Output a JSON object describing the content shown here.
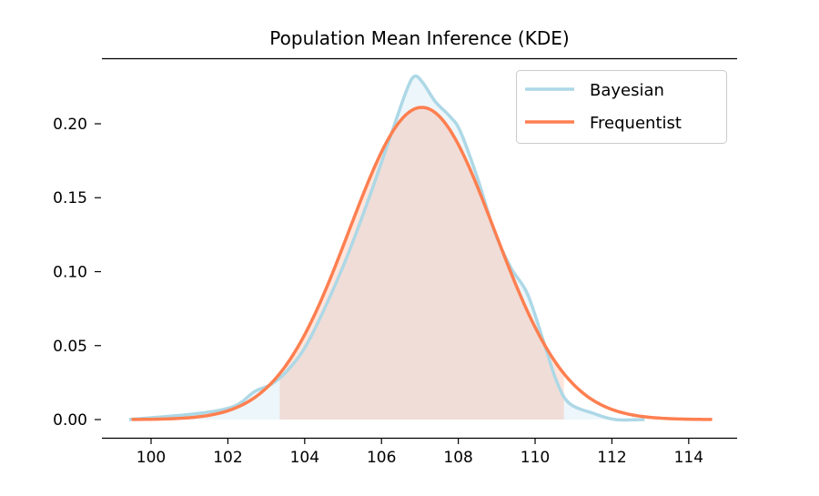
{
  "chart_data": {
    "type": "line",
    "title": "Population Mean Inference (KDE)",
    "xlabel": "",
    "ylabel": "",
    "xlim": [
      98.72,
      115.26
    ],
    "ylim": [
      -0.0123,
      0.2443
    ],
    "xticks": [
      100,
      102,
      104,
      106,
      108,
      110,
      112,
      114
    ],
    "xtick_labels": [
      "100",
      "102",
      "104",
      "106",
      "108",
      "110",
      "112",
      "114"
    ],
    "yticks": [
      0.0,
      0.05,
      0.1,
      0.15,
      0.2
    ],
    "ytick_labels": [
      "0.00",
      "0.05",
      "0.10",
      "0.15",
      "0.20"
    ],
    "grid": false,
    "legend_position": "top-right",
    "series": [
      {
        "name": "Bayesian",
        "color": "#add8e6",
        "fill": true,
        "x": [
          99.43,
          101.18,
          102.16,
          102.7,
          103.14,
          103.58,
          104.12,
          104.99,
          105.65,
          106.2,
          106.63,
          106.85,
          107.07,
          107.4,
          107.78,
          108.05,
          108.49,
          108.93,
          109.36,
          109.8,
          110.23,
          110.56,
          110.89,
          111.54,
          112.09,
          112.85
        ],
        "y": [
          0,
          0.004,
          0.009,
          0.019,
          0.024,
          0.034,
          0.054,
          0.103,
          0.148,
          0.189,
          0.221,
          0.232,
          0.228,
          0.215,
          0.205,
          0.195,
          0.164,
          0.128,
          0.103,
          0.085,
          0.052,
          0.026,
          0.011,
          0.004,
          0,
          0
        ]
      },
      {
        "name": "Frequentist",
        "color": "#ff7f50",
        "distribution": "normal",
        "mean": 107.05,
        "std": 1.89,
        "x_range": [
          99.49,
          114.61
        ],
        "ci_fill": [
          103.35,
          110.75
        ]
      }
    ]
  }
}
